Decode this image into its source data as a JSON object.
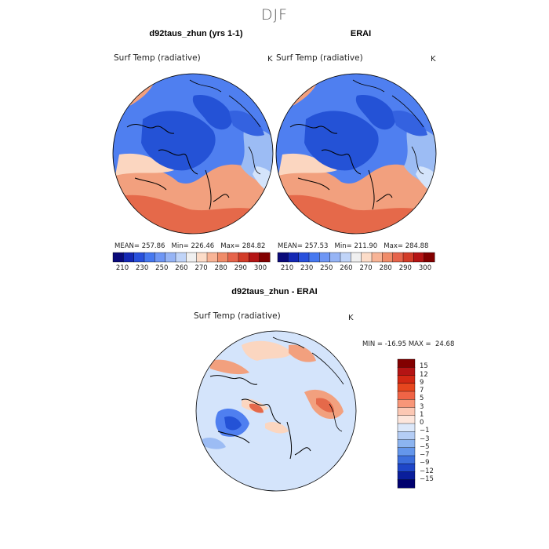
{
  "figure": {
    "title": "DJF"
  },
  "panels": {
    "model": {
      "title": "d92taus_zhun (yrs 1-1)",
      "field": "Surf Temp (radiative)",
      "units": "K",
      "stats": "MEAN= 257.86   Min= 226.46   Max= 284.82"
    },
    "obs": {
      "title": "ERAI",
      "field": "Surf Temp (radiative)",
      "units": "K",
      "stats": "MEAN= 257.53   Min= 211.90   Max= 284.88"
    },
    "diff": {
      "title": "d92taus_zhun - ERAI",
      "field": "Surf Temp (radiative)",
      "units": "K",
      "stats": "MIN = -16.95 MAX =  24.68"
    }
  },
  "colorbars": {
    "abs": {
      "labels": [
        "210",
        "230",
        "250",
        "260",
        "270",
        "280",
        "290",
        "300"
      ],
      "colors": [
        "#0a0a7a",
        "#1428b4",
        "#2850dc",
        "#4678f0",
        "#6e96f5",
        "#96b4f5",
        "#c0d4f8",
        "#f0f0f0",
        "#fcdcc8",
        "#f8b496",
        "#f08c69",
        "#e6644b",
        "#d23c28",
        "#b41414",
        "#820000"
      ]
    },
    "diff": {
      "labels": [
        "15",
        "12",
        "9",
        "7",
        "5",
        "3",
        "1",
        "0",
        "−1",
        "−3",
        "−5",
        "−7",
        "−9",
        "−12",
        "−15"
      ],
      "colors": [
        "#820000",
        "#b41414",
        "#d22814",
        "#e6461e",
        "#f06446",
        "#f89678",
        "#fcc8b4",
        "#fde6dc",
        "#dce8fa",
        "#b4cdf5",
        "#8cb4f0",
        "#6496eb",
        "#3c6edc",
        "#1e46c8",
        "#0a1e9b",
        "#00006e"
      ]
    }
  },
  "palette": {
    "deep_blue": "#2452d6",
    "mid_blue": "#4f7ff0",
    "light_blue": "#9cbcf4",
    "pale_blue": "#d4e4fb",
    "pale_orange": "#fbd6c0",
    "orange": "#f2a07e",
    "red_orange": "#e5694a"
  }
}
